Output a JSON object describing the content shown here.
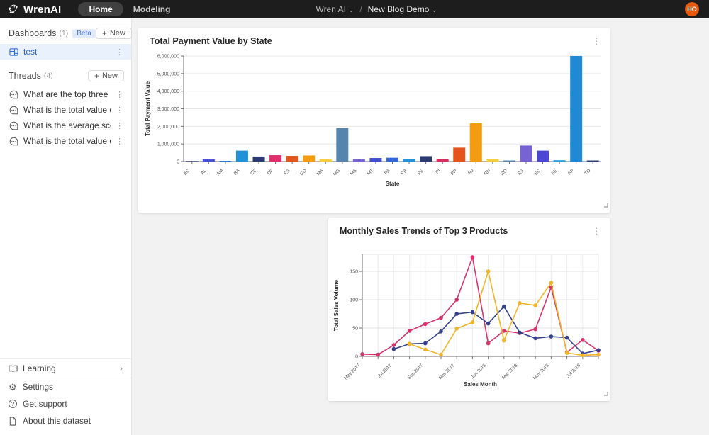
{
  "glyphs": {
    "plus": "+",
    "more": "⋮",
    "chevron_down": "⌄",
    "chevron_right": "›",
    "gear": "⚙",
    "question": "?"
  },
  "header": {
    "brand": "WrenAI",
    "nav_home": "Home",
    "nav_modeling": "Modeling",
    "org": "Wren AI",
    "separator": "/",
    "project": "New Blog Demo",
    "avatar_initials": "HO",
    "avatar_color": "#e8590c"
  },
  "sidebar": {
    "dashboards": {
      "title": "Dashboards",
      "count": "(1)",
      "beta": "Beta",
      "new_label": "New",
      "items": [
        {
          "label": "test",
          "selected": true
        }
      ]
    },
    "threads": {
      "title": "Threads",
      "count": "(4)",
      "new_label": "New",
      "items": [
        {
          "label": "What are the top three most p..."
        },
        {
          "label": "What is the total value of paym..."
        },
        {
          "label": "What is the average score of r..."
        },
        {
          "label": "What is the total value of paym..."
        }
      ]
    },
    "footer": {
      "learning": "Learning",
      "settings": "Settings",
      "support": "Get support",
      "about": "About this dataset"
    }
  },
  "colors": {
    "selected_item_bg": "#e9f1fc",
    "selected_item_text": "#2563d9",
    "beta_bg": "#e1ebfb",
    "beta_text": "#4d71e8",
    "topbar": "#1d1d1d"
  },
  "chart_data": [
    {
      "type": "bar",
      "title": "Total Payment Value by State",
      "xlabel": "State",
      "ylabel": "Total Payment Value",
      "ylim": [
        0,
        6000000
      ],
      "yticks": [
        0,
        1000000,
        2000000,
        3000000,
        4000000,
        5000000,
        6000000
      ],
      "grid": true,
      "legend": "none",
      "categories": [
        "AC",
        "AL",
        "AM",
        "BA",
        "CE",
        "DF",
        "ES",
        "GO",
        "MA",
        "MG",
        "MS",
        "MT",
        "PA",
        "PB",
        "PE",
        "PI",
        "PR",
        "RJ",
        "RN",
        "RO",
        "RS",
        "SC",
        "SE",
        "SP",
        "TO"
      ],
      "values": [
        30000,
        120000,
        40000,
        620000,
        285000,
        360000,
        320000,
        345000,
        145000,
        1900000,
        145000,
        200000,
        215000,
        160000,
        305000,
        130000,
        790000,
        2180000,
        145000,
        60000,
        910000,
        620000,
        75000,
        6000000,
        60000
      ],
      "colors": [
        "#2c3a72",
        "#4553d7",
        "#2f7ed8",
        "#2191d9",
        "#2c3a72",
        "#e0316e",
        "#e4541b",
        "#f39c12",
        "#f6ce3c",
        "#5585ad",
        "#7763d1",
        "#4150d0",
        "#3468d8",
        "#2191d9",
        "#2c3a72",
        "#d62f5e",
        "#e4541b",
        "#f39c12",
        "#f6ce3c",
        "#5585ad",
        "#7763d1",
        "#4b46d4",
        "#2b9fd8",
        "#2089d5",
        "#2c3a72"
      ]
    },
    {
      "type": "line",
      "title": "Monthly Sales Trends of Top 3 Products",
      "xlabel": "Sales Month",
      "ylabel": "Total Sales Volume",
      "ylim": [
        0,
        180
      ],
      "yticks": [
        0,
        50,
        100,
        150
      ],
      "grid": true,
      "legend": "none",
      "x": [
        "May 2017",
        "Jun 2017",
        "Jul 2017",
        "Aug 2017",
        "Sep 2017",
        "Oct 2017",
        "Nov 2017",
        "Dec 2017",
        "Jan 2018",
        "Feb 2018",
        "Mar 2018",
        "Apr 2018",
        "May 2018",
        "Jun 2018",
        "Jul 2018",
        "Aug 2018"
      ],
      "xtick_labels_shown": [
        "May 2017",
        "Jul 2017",
        "Sep 2017",
        "Nov 2017",
        "Jan 2018",
        "Mar 2018",
        "May 2018",
        "Jul 2018"
      ],
      "series": [
        {
          "name": "series-1",
          "color": "#d6336c",
          "values": [
            4,
            3,
            20,
            45,
            57,
            68,
            100,
            175,
            23,
            45,
            41,
            48,
            122,
            7,
            29,
            10
          ]
        },
        {
          "name": "series-2",
          "color": "#34408c",
          "values": [
            null,
            null,
            13,
            22,
            23,
            44,
            75,
            78,
            58,
            88,
            42,
            32,
            35,
            33,
            5,
            11
          ]
        },
        {
          "name": "series-3",
          "color": "#f0b429",
          "values": [
            null,
            null,
            null,
            22,
            12,
            3,
            49,
            60,
            150,
            28,
            94,
            90,
            130,
            6,
            2,
            3
          ]
        }
      ]
    }
  ]
}
